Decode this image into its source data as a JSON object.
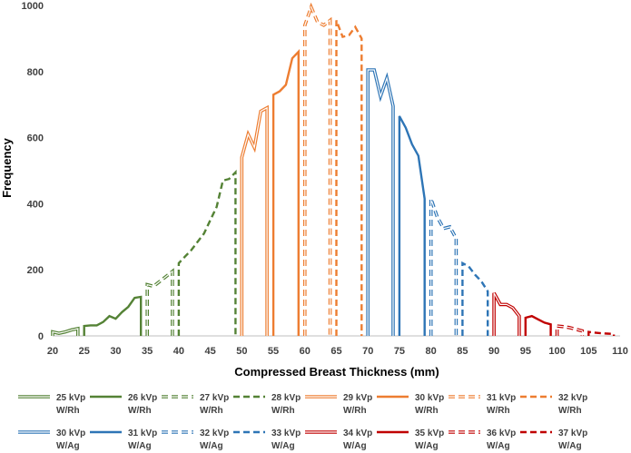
{
  "chart_data": {
    "type": "line",
    "title": "",
    "xlabel": "Compressed Breast Thickness (mm)",
    "ylabel": "Frequency",
    "xlim": [
      20,
      110
    ],
    "ylim": [
      0,
      1000
    ],
    "xticks": [
      20,
      25,
      30,
      35,
      40,
      45,
      50,
      55,
      60,
      65,
      70,
      75,
      80,
      85,
      90,
      95,
      100,
      105,
      110
    ],
    "yticks": [
      0,
      200,
      400,
      600,
      800,
      1000
    ],
    "grid": false,
    "legend_position": "bottom",
    "series": [
      {
        "name": "25 kVp",
        "filter": "W/Rh",
        "color": "#548235",
        "style": "double",
        "x": [
          20,
          20,
          21,
          22,
          23,
          24,
          24
        ],
        "y": [
          0,
          12,
          8,
          12,
          18,
          22,
          0
        ]
      },
      {
        "name": "26 kVp",
        "filter": "W/Rh",
        "color": "#548235",
        "style": "solid",
        "x": [
          25,
          25,
          26,
          27,
          28,
          29,
          30,
          31,
          32,
          33,
          34,
          34
        ],
        "y": [
          0,
          30,
          32,
          32,
          42,
          60,
          52,
          72,
          88,
          115,
          118,
          0
        ]
      },
      {
        "name": "27 kVp",
        "filter": "W/Rh",
        "color": "#548235",
        "style": "double-dash",
        "x": [
          35,
          35,
          36,
          37,
          38,
          39,
          39
        ],
        "y": [
          0,
          155,
          150,
          165,
          180,
          195,
          0
        ]
      },
      {
        "name": "28 kVp",
        "filter": "W/Rh",
        "color": "#548235",
        "style": "dash",
        "x": [
          40,
          40,
          41,
          42,
          43,
          44,
          45,
          46,
          47,
          48,
          49,
          49
        ],
        "y": [
          0,
          220,
          240,
          260,
          285,
          310,
          350,
          390,
          470,
          475,
          495,
          0
        ]
      },
      {
        "name": "29 kVp",
        "filter": "W/Rh",
        "color": "#ED7D31",
        "style": "double",
        "x": [
          50,
          50,
          51,
          52,
          53,
          54,
          54
        ],
        "y": [
          0,
          540,
          610,
          570,
          680,
          690,
          0
        ]
      },
      {
        "name": "30 kVp",
        "filter": "W/Rh",
        "color": "#ED7D31",
        "style": "solid",
        "x": [
          55,
          55,
          56,
          57,
          58,
          59,
          59
        ],
        "y": [
          0,
          730,
          740,
          760,
          840,
          860,
          0
        ]
      },
      {
        "name": "31 kVp",
        "filter": "W/Rh",
        "color": "#ED7D31",
        "style": "double-dash",
        "x": [
          60,
          60,
          61,
          62,
          63,
          64,
          64
        ],
        "y": [
          0,
          940,
          995,
          950,
          940,
          955,
          0
        ]
      },
      {
        "name": "32 kVp",
        "filter": "W/Rh",
        "color": "#ED7D31",
        "style": "dash",
        "x": [
          65,
          65,
          66,
          67,
          68,
          69,
          69
        ],
        "y": [
          0,
          955,
          905,
          910,
          935,
          900,
          0
        ]
      },
      {
        "name": "30 kVp",
        "filter": "W/Ag",
        "color": "#2E75B6",
        "style": "double",
        "x": [
          70,
          70,
          71,
          72,
          73,
          74,
          74
        ],
        "y": [
          0,
          805,
          805,
          725,
          780,
          695,
          0
        ]
      },
      {
        "name": "31 kVp",
        "filter": "W/Ag",
        "color": "#2E75B6",
        "style": "solid",
        "x": [
          75,
          75,
          76,
          77,
          78,
          79,
          79
        ],
        "y": [
          0,
          665,
          630,
          580,
          545,
          415,
          0
        ]
      },
      {
        "name": "32 kVp",
        "filter": "W/Ag",
        "color": "#2E75B6",
        "style": "double-dash",
        "x": [
          80,
          80,
          81,
          82,
          83,
          84,
          84
        ],
        "y": [
          0,
          415,
          360,
          325,
          330,
          295,
          0
        ]
      },
      {
        "name": "33 kVp",
        "filter": "W/Ag",
        "color": "#2E75B6",
        "style": "dash",
        "x": [
          85,
          85,
          86,
          87,
          88,
          89,
          89
        ],
        "y": [
          0,
          220,
          210,
          185,
          165,
          135,
          0
        ]
      },
      {
        "name": "34 kVp",
        "filter": "W/Ag",
        "color": "#C00000",
        "style": "double",
        "x": [
          90,
          90,
          91,
          92,
          93,
          94,
          94
        ],
        "y": [
          0,
          130,
          95,
          95,
          85,
          60,
          0
        ]
      },
      {
        "name": "35 kVp",
        "filter": "W/Ag",
        "color": "#C00000",
        "style": "solid",
        "x": [
          95,
          95,
          96,
          97,
          98,
          99,
          99
        ],
        "y": [
          0,
          55,
          60,
          50,
          40,
          35,
          0
        ]
      },
      {
        "name": "36 kVp",
        "filter": "W/Ag",
        "color": "#C00000",
        "style": "double-dash",
        "x": [
          100,
          100,
          101,
          102,
          103,
          104,
          104
        ],
        "y": [
          0,
          30,
          28,
          25,
          20,
          15,
          0
        ]
      },
      {
        "name": "37 kVp",
        "filter": "W/Ag",
        "color": "#C00000",
        "style": "dash",
        "x": [
          105,
          105,
          106,
          107,
          108,
          109,
          109
        ],
        "y": [
          0,
          12,
          10,
          8,
          7,
          6,
          0
        ]
      }
    ]
  }
}
